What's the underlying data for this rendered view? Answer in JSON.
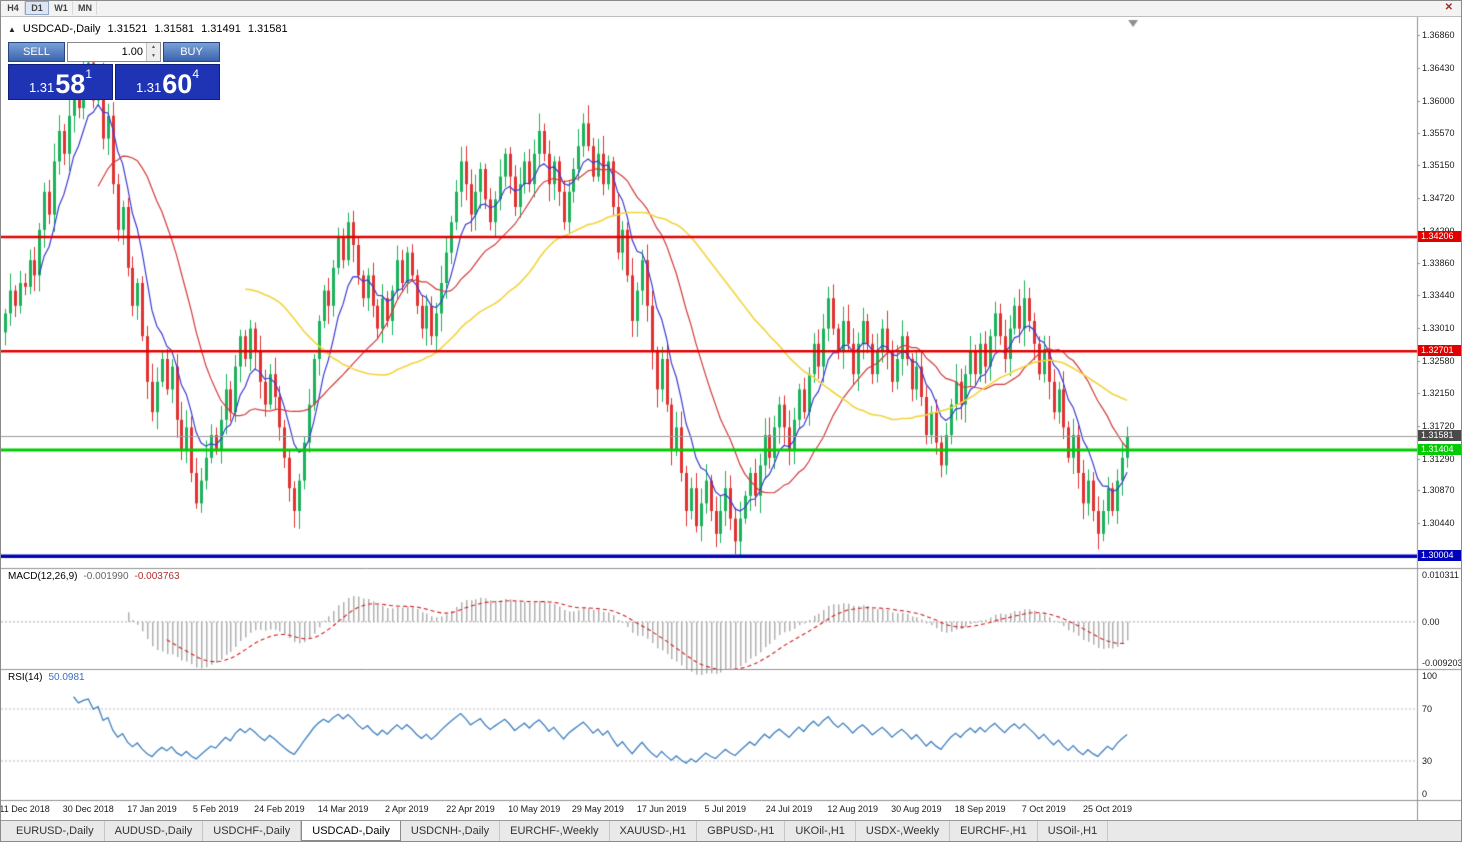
{
  "icons": {
    "tick_up": "▲",
    "close": "✕",
    "spin_up": "▲",
    "spin_down": "▼"
  },
  "toolbar": {
    "timeframes": [
      {
        "label": "H4",
        "active": false
      },
      {
        "label": "D1",
        "active": true
      },
      {
        "label": "W1",
        "active": false
      },
      {
        "label": "MN",
        "active": false
      }
    ]
  },
  "ohlc_bar": {
    "symbol": "USDCAD-,Daily",
    "open": "1.31521",
    "high": "1.31581",
    "low": "1.31491",
    "close": "1.31581"
  },
  "trade_panel": {
    "sell_label": "SELL",
    "buy_label": "BUY",
    "volume": "1.00",
    "sell_price": {
      "base": "1.31",
      "big": "58",
      "sup": "1"
    },
    "buy_price": {
      "base": "1.31",
      "big": "60",
      "sup": "4"
    }
  },
  "chart_data": {
    "type": "candlestick",
    "symbol": "USDCAD",
    "period": "Daily",
    "y_domain": [
      1.2985,
      1.371
    ],
    "y_ticks": [
      "1.36860",
      "1.36430",
      "1.36000",
      "1.35570",
      "1.35150",
      "1.34720",
      "1.34290",
      "1.33860",
      "1.33440",
      "1.33010",
      "1.32580",
      "1.32150",
      "1.31720",
      "1.31290",
      "1.30870",
      "1.30440"
    ],
    "x_labels": [
      "11 Dec 2018",
      "30 Dec 2018",
      "17 Jan 2019",
      "5 Feb 2019",
      "24 Feb 2019",
      "14 Mar 2019",
      "2 Apr 2019",
      "22 Apr 2019",
      "10 May 2019",
      "29 May 2019",
      "17 Jun 2019",
      "5 Jul 2019",
      "24 Jul 2019",
      "12 Aug 2019",
      "30 Aug 2019",
      "18 Sep 2019",
      "7 Oct 2019",
      "25 Oct 2019"
    ],
    "x_label_first_index": 4,
    "x_label_step": 13,
    "closes": [
      1.332,
      1.335,
      1.333,
      1.336,
      1.3355,
      1.339,
      1.337,
      1.343,
      1.348,
      1.345,
      1.352,
      1.356,
      1.353,
      1.358,
      1.362,
      1.359,
      1.363,
      1.365,
      1.36,
      1.363,
      1.355,
      1.358,
      1.349,
      1.343,
      1.346,
      1.338,
      1.333,
      1.336,
      1.329,
      1.323,
      1.319,
      1.323,
      1.326,
      1.322,
      1.325,
      1.318,
      1.314,
      1.317,
      1.311,
      1.307,
      1.31,
      1.313,
      1.316,
      1.314,
      1.318,
      1.322,
      1.319,
      1.325,
      1.329,
      1.326,
      1.33,
      1.327,
      1.323,
      1.32,
      1.324,
      1.321,
      1.317,
      1.313,
      1.309,
      1.306,
      1.31,
      1.315,
      1.32,
      1.326,
      1.331,
      1.335,
      1.333,
      1.338,
      1.342,
      1.339,
      1.344,
      1.341,
      1.337,
      1.334,
      1.337,
      1.333,
      1.33,
      1.334,
      1.331,
      1.335,
      1.339,
      1.336,
      1.34,
      1.337,
      1.333,
      1.33,
      1.333,
      1.329,
      1.332,
      1.336,
      1.34,
      1.344,
      1.348,
      1.352,
      1.349,
      1.345,
      1.348,
      1.351,
      1.347,
      1.344,
      1.347,
      1.35,
      1.353,
      1.35,
      1.346,
      1.349,
      1.352,
      1.349,
      1.353,
      1.356,
      1.353,
      1.349,
      1.352,
      1.348,
      1.344,
      1.348,
      1.351,
      1.354,
      1.357,
      1.354,
      1.35,
      1.353,
      1.349,
      1.352,
      1.346,
      1.34,
      1.343,
      1.337,
      1.331,
      1.335,
      1.339,
      1.333,
      1.327,
      1.322,
      1.326,
      1.32,
      1.314,
      1.317,
      1.311,
      1.306,
      1.309,
      1.304,
      1.307,
      1.31,
      1.306,
      1.303,
      1.306,
      1.309,
      1.305,
      1.302,
      1.305,
      1.308,
      1.311,
      1.308,
      1.312,
      1.316,
      1.313,
      1.317,
      1.32,
      1.317,
      1.314,
      1.318,
      1.322,
      1.319,
      1.324,
      1.328,
      1.325,
      1.33,
      1.334,
      1.33,
      1.327,
      1.331,
      1.328,
      1.324,
      1.328,
      1.331,
      1.328,
      1.324,
      1.327,
      1.33,
      1.327,
      1.323,
      1.326,
      1.329,
      1.326,
      1.322,
      1.325,
      1.321,
      1.316,
      1.319,
      1.315,
      1.312,
      1.316,
      1.32,
      1.323,
      1.32,
      1.324,
      1.327,
      1.324,
      1.328,
      1.325,
      1.329,
      1.332,
      1.329,
      1.326,
      1.33,
      1.333,
      1.33,
      1.334,
      1.331,
      1.328,
      1.324,
      1.327,
      1.323,
      1.319,
      1.322,
      1.317,
      1.313,
      1.316,
      1.311,
      1.307,
      1.31,
      1.306,
      1.303,
      1.306,
      1.309,
      1.306,
      1.31,
      1.313,
      1.3158
    ],
    "candle_colors": {
      "bull": "#1cb25b",
      "bear": "#e03232"
    },
    "moving_averages": [
      {
        "type": "ema",
        "period": 8,
        "color": "#3b3bd1"
      },
      {
        "type": "sma",
        "period": 20,
        "color": "#d13b3b"
      },
      {
        "type": "sma",
        "period": 50,
        "color": "#f2d43f"
      }
    ],
    "levels": [
      {
        "price": 1.34206,
        "label": "1.34206",
        "color": "#e00000",
        "thickness": 2.5
      },
      {
        "price": 1.32701,
        "label": "1.32701",
        "color": "#e00000",
        "thickness": 2.5
      },
      {
        "price": 1.31404,
        "label": "1.31404",
        "color": "#00cc00",
        "thickness": 3
      },
      {
        "price": 1.30004,
        "label": "1.30004",
        "color": "#0000bb",
        "thickness": 3.5
      }
    ],
    "current_price": {
      "price": 1.31581,
      "label": "1.31581",
      "color": "#4a4a4a"
    },
    "indicators": {
      "macd": {
        "title": "MACD(12,26,9)",
        "value_main": "-0.001990",
        "value_signal": "-0.003763",
        "axis_ticks": [
          "0.010311",
          "0.00",
          "-0.009203"
        ],
        "range": [
          -0.009203,
          0.010311
        ],
        "histogram_color": "#b0b0b0",
        "signal_color": "#d02020"
      },
      "rsi": {
        "title": "RSI(14)",
        "value": "50.0981",
        "axis_ticks": [
          "100",
          "70",
          "30",
          "0"
        ],
        "range": [
          0,
          100
        ],
        "levels": [
          70,
          30
        ],
        "line_color": "#4080c0"
      }
    }
  },
  "tabs": [
    {
      "label": "EURUSD-,Daily",
      "active": false
    },
    {
      "label": "AUDUSD-,Daily",
      "active": false
    },
    {
      "label": "USDCHF-,Daily",
      "active": false
    },
    {
      "label": "USDCAD-,Daily",
      "active": true
    },
    {
      "label": "USDCNH-,Daily",
      "active": false
    },
    {
      "label": "EURCHF-,Weekly",
      "active": false
    },
    {
      "label": "XAUUSD-,H1",
      "active": false
    },
    {
      "label": "GBPUSD-,H1",
      "active": false
    },
    {
      "label": "UKOil-,H1",
      "active": false
    },
    {
      "label": "USDX-,Weekly",
      "active": false
    },
    {
      "label": "EURCHF-,H1",
      "active": false
    },
    {
      "label": "USOil-,H1",
      "active": false
    }
  ]
}
